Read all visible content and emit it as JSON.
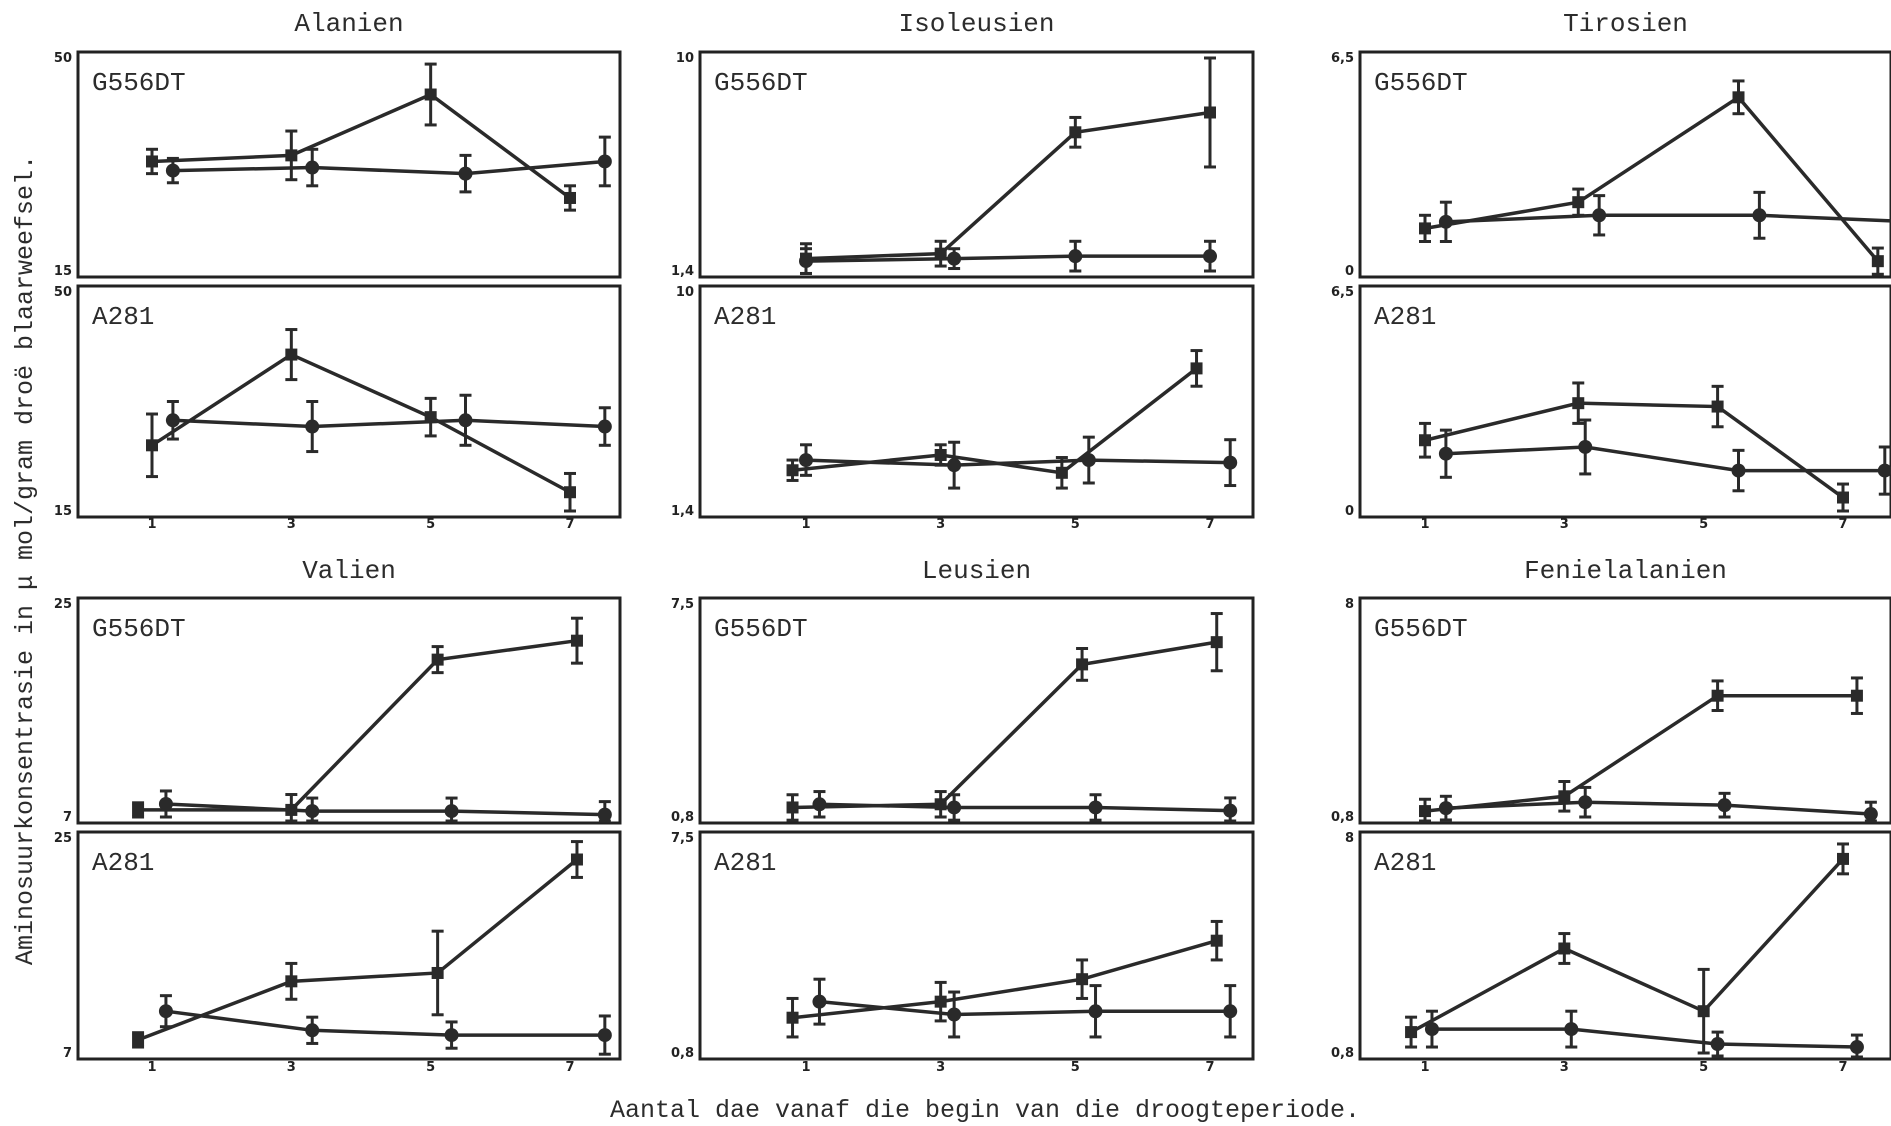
{
  "figure": {
    "ylabel": "Aminosuurkonsentrasie in μ mol/gram droë blaarweefsel.",
    "xlabel": "Aantal dae vanaf die begin van die droogteperiode."
  },
  "chart_data": [
    {
      "type": "line",
      "title": "Alanien",
      "x_ticks": [
        "1",
        "3",
        "5",
        "7"
      ],
      "panels": [
        {
          "label": "G556DT",
          "ylim": [
            15,
            50
          ],
          "y_ticks": [
            "50",
            "15"
          ],
          "series": [
            {
              "marker": "square",
              "points": [
                {
                  "x": 1,
                  "y": 33,
                  "err": 2
                },
                {
                  "x": 3,
                  "y": 34,
                  "err": 4
                },
                {
                  "x": 5,
                  "y": 44,
                  "err": 5
                },
                {
                  "x": 7,
                  "y": 27,
                  "err": 2
                }
              ]
            },
            {
              "marker": "circle",
              "points": [
                {
                  "x": 1.3,
                  "y": 31.5,
                  "err": 2
                },
                {
                  "x": 3.3,
                  "y": 32,
                  "err": 3
                },
                {
                  "x": 5.5,
                  "y": 31,
                  "err": 3
                },
                {
                  "x": 7.5,
                  "y": 33,
                  "err": 4
                }
              ]
            }
          ]
        },
        {
          "label": "A281",
          "ylim": [
            15,
            50
          ],
          "y_ticks": [
            "50",
            "15"
          ],
          "series": [
            {
              "marker": "square",
              "points": [
                {
                  "x": 1,
                  "y": 25.5,
                  "err": 5
                },
                {
                  "x": 3,
                  "y": 40,
                  "err": 4
                },
                {
                  "x": 5,
                  "y": 30,
                  "err": 3
                },
                {
                  "x": 7,
                  "y": 18,
                  "err": 3
                }
              ]
            },
            {
              "marker": "circle",
              "points": [
                {
                  "x": 1.3,
                  "y": 29.5,
                  "err": 3
                },
                {
                  "x": 3.3,
                  "y": 28.5,
                  "err": 4
                },
                {
                  "x": 5.5,
                  "y": 29.5,
                  "err": 4
                },
                {
                  "x": 7.5,
                  "y": 28.5,
                  "err": 3
                }
              ]
            }
          ]
        }
      ]
    },
    {
      "type": "line",
      "title": "Isoleusien",
      "x_ticks": [
        "1",
        "3",
        "5",
        "7"
      ],
      "panels": [
        {
          "label": "G556DT",
          "ylim": [
            1.4,
            10
          ],
          "y_ticks": [
            "10",
            "1,4"
          ],
          "series": [
            {
              "marker": "square",
              "points": [
                {
                  "x": 1,
                  "y": 1.9,
                  "err": 0.6
                },
                {
                  "x": 3,
                  "y": 2.1,
                  "err": 0.5
                },
                {
                  "x": 5,
                  "y": 7.0,
                  "err": 0.6
                },
                {
                  "x": 7,
                  "y": 7.8,
                  "err": 2.2
                }
              ]
            },
            {
              "marker": "circle",
              "points": [
                {
                  "x": 1,
                  "y": 1.8,
                  "err": 0.5
                },
                {
                  "x": 3.2,
                  "y": 1.9,
                  "err": 0.4
                },
                {
                  "x": 5,
                  "y": 2.0,
                  "err": 0.6
                },
                {
                  "x": 7,
                  "y": 2.0,
                  "err": 0.6
                }
              ]
            }
          ]
        },
        {
          "label": "A281",
          "ylim": [
            1.4,
            10
          ],
          "y_ticks": [
            "10",
            "1,4"
          ],
          "series": [
            {
              "marker": "square",
              "points": [
                {
                  "x": 0.8,
                  "y": 3.0,
                  "err": 0.4
                },
                {
                  "x": 3.0,
                  "y": 3.6,
                  "err": 0.4
                },
                {
                  "x": 4.8,
                  "y": 2.9,
                  "err": 0.6
                },
                {
                  "x": 6.8,
                  "y": 7.0,
                  "err": 0.7
                }
              ]
            },
            {
              "marker": "circle",
              "points": [
                {
                  "x": 1.0,
                  "y": 3.4,
                  "err": 0.6
                },
                {
                  "x": 3.2,
                  "y": 3.2,
                  "err": 0.9
                },
                {
                  "x": 5.2,
                  "y": 3.4,
                  "err": 0.9
                },
                {
                  "x": 7.3,
                  "y": 3.3,
                  "err": 0.9
                }
              ]
            }
          ]
        }
      ]
    },
    {
      "type": "line",
      "title": "Tirosien",
      "x_ticks": [
        "1",
        "3",
        "5",
        "7"
      ],
      "panels": [
        {
          "label": "G556DT",
          "ylim": [
            0,
            6.5
          ],
          "y_ticks": [
            "6,5",
            "0"
          ],
          "series": [
            {
              "marker": "square",
              "points": [
                {
                  "x": 1,
                  "y": 1.3,
                  "err": 0.4
                },
                {
                  "x": 3.2,
                  "y": 2.1,
                  "err": 0.4
                },
                {
                  "x": 5.5,
                  "y": 5.3,
                  "err": 0.5
                },
                {
                  "x": 7.5,
                  "y": 0.3,
                  "err": 0.4
                }
              ]
            },
            {
              "marker": "circle",
              "points": [
                {
                  "x": 1.3,
                  "y": 1.5,
                  "err": 0.6
                },
                {
                  "x": 3.5,
                  "y": 1.7,
                  "err": 0.6
                },
                {
                  "x": 5.8,
                  "y": 1.7,
                  "err": 0.7
                },
                {
                  "x": 8.0,
                  "y": 1.5,
                  "err": 0.7
                }
              ]
            }
          ]
        },
        {
          "label": "A281",
          "ylim": [
            0,
            6.5
          ],
          "y_ticks": [
            "6,5",
            "0"
          ],
          "series": [
            {
              "marker": "square",
              "points": [
                {
                  "x": 1,
                  "y": 2.1,
                  "err": 0.5
                },
                {
                  "x": 3.2,
                  "y": 3.2,
                  "err": 0.6
                },
                {
                  "x": 5.2,
                  "y": 3.1,
                  "err": 0.6
                },
                {
                  "x": 7.0,
                  "y": 0.4,
                  "err": 0.4
                }
              ]
            },
            {
              "marker": "circle",
              "points": [
                {
                  "x": 1.3,
                  "y": 1.7,
                  "err": 0.7
                },
                {
                  "x": 3.3,
                  "y": 1.9,
                  "err": 0.8
                },
                {
                  "x": 5.5,
                  "y": 1.2,
                  "err": 0.6
                },
                {
                  "x": 7.6,
                  "y": 1.2,
                  "err": 0.7
                }
              ]
            }
          ]
        }
      ]
    },
    {
      "type": "line",
      "title": "Valien",
      "x_ticks": [
        "1",
        "3",
        "5",
        "7"
      ],
      "panels": [
        {
          "label": "G556DT",
          "ylim": [
            7,
            25
          ],
          "y_ticks": [
            "25",
            "7"
          ],
          "series": [
            {
              "marker": "square",
              "points": [
                {
                  "x": 0.8,
                  "y": 7.6,
                  "err": 0.6
                },
                {
                  "x": 3.0,
                  "y": 7.6,
                  "err": 1.3
                },
                {
                  "x": 5.1,
                  "y": 20.3,
                  "err": 1.1
                },
                {
                  "x": 7.1,
                  "y": 21.9,
                  "err": 1.9
                }
              ]
            },
            {
              "marker": "circle",
              "points": [
                {
                  "x": 1.2,
                  "y": 8.1,
                  "err": 1.1
                },
                {
                  "x": 3.3,
                  "y": 7.5,
                  "err": 1.1
                },
                {
                  "x": 5.3,
                  "y": 7.5,
                  "err": 1.1
                },
                {
                  "x": 7.5,
                  "y": 7.2,
                  "err": 1.1
                }
              ]
            }
          ]
        },
        {
          "label": "A281",
          "ylim": [
            7,
            25
          ],
          "y_ticks": [
            "25",
            "7"
          ],
          "series": [
            {
              "marker": "square",
              "points": [
                {
                  "x": 0.8,
                  "y": 8.1,
                  "err": 0.6
                },
                {
                  "x": 3.0,
                  "y": 13.0,
                  "err": 1.5
                },
                {
                  "x": 5.1,
                  "y": 13.7,
                  "err": 3.5
                },
                {
                  "x": 7.1,
                  "y": 23.2,
                  "err": 1.5
                }
              ]
            },
            {
              "marker": "circle",
              "points": [
                {
                  "x": 1.2,
                  "y": 10.5,
                  "err": 1.3
                },
                {
                  "x": 3.3,
                  "y": 8.9,
                  "err": 1.1
                },
                {
                  "x": 5.3,
                  "y": 8.5,
                  "err": 1.1
                },
                {
                  "x": 7.5,
                  "y": 8.5,
                  "err": 1.6
                }
              ]
            }
          ]
        }
      ]
    },
    {
      "type": "line",
      "title": "Leusien",
      "x_ticks": [
        "1",
        "3",
        "5",
        "7"
      ],
      "panels": [
        {
          "label": "G556DT",
          "ylim": [
            0.8,
            7.5
          ],
          "y_ticks": [
            "7,5",
            "0,8"
          ],
          "series": [
            {
              "marker": "square",
              "points": [
                {
                  "x": 0.8,
                  "y": 1.1,
                  "err": 0.4
                },
                {
                  "x": 3.0,
                  "y": 1.2,
                  "err": 0.4
                },
                {
                  "x": 5.1,
                  "y": 5.6,
                  "err": 0.5
                },
                {
                  "x": 7.1,
                  "y": 6.3,
                  "err": 0.9
                }
              ]
            },
            {
              "marker": "circle",
              "points": [
                {
                  "x": 1.2,
                  "y": 1.2,
                  "err": 0.4
                },
                {
                  "x": 3.2,
                  "y": 1.1,
                  "err": 0.4
                },
                {
                  "x": 5.3,
                  "y": 1.1,
                  "err": 0.4
                },
                {
                  "x": 7.3,
                  "y": 1.0,
                  "err": 0.4
                }
              ]
            }
          ]
        },
        {
          "label": "A281",
          "ylim": [
            0.8,
            7.5
          ],
          "y_ticks": [
            "7,5",
            "0,8"
          ],
          "series": [
            {
              "marker": "square",
              "points": [
                {
                  "x": 0.8,
                  "y": 1.9,
                  "err": 0.6
                },
                {
                  "x": 3.0,
                  "y": 2.4,
                  "err": 0.6
                },
                {
                  "x": 5.1,
                  "y": 3.1,
                  "err": 0.6
                },
                {
                  "x": 7.1,
                  "y": 4.3,
                  "err": 0.6
                }
              ]
            },
            {
              "marker": "circle",
              "points": [
                {
                  "x": 1.2,
                  "y": 2.4,
                  "err": 0.7
                },
                {
                  "x": 3.2,
                  "y": 2.0,
                  "err": 0.7
                },
                {
                  "x": 5.3,
                  "y": 2.1,
                  "err": 0.8
                },
                {
                  "x": 7.3,
                  "y": 2.1,
                  "err": 0.8
                }
              ]
            }
          ]
        }
      ]
    },
    {
      "type": "line",
      "title": "Fenielalanien",
      "x_ticks": [
        "1",
        "3",
        "5",
        "7"
      ],
      "panels": [
        {
          "label": "G556DT",
          "ylim": [
            0.8,
            8
          ],
          "y_ticks": [
            "8",
            "0,8"
          ],
          "series": [
            {
              "marker": "square",
              "points": [
                {
                  "x": 1.0,
                  "y": 1.0,
                  "err": 0.4
                },
                {
                  "x": 3.0,
                  "y": 1.5,
                  "err": 0.5
                },
                {
                  "x": 5.2,
                  "y": 4.9,
                  "err": 0.5
                },
                {
                  "x": 7.2,
                  "y": 4.9,
                  "err": 0.6
                }
              ]
            },
            {
              "marker": "circle",
              "points": [
                {
                  "x": 1.3,
                  "y": 1.1,
                  "err": 0.4
                },
                {
                  "x": 3.3,
                  "y": 1.3,
                  "err": 0.5
                },
                {
                  "x": 5.3,
                  "y": 1.2,
                  "err": 0.4
                },
                {
                  "x": 7.4,
                  "y": 0.9,
                  "err": 0.4
                }
              ]
            }
          ]
        },
        {
          "label": "A281",
          "ylim": [
            0.8,
            8
          ],
          "y_ticks": [
            "8",
            "0,8"
          ],
          "series": [
            {
              "marker": "square",
              "points": [
                {
                  "x": 0.8,
                  "y": 1.5,
                  "err": 0.5
                },
                {
                  "x": 3.0,
                  "y": 4.3,
                  "err": 0.5
                },
                {
                  "x": 5.0,
                  "y": 2.2,
                  "err": 1.4
                },
                {
                  "x": 7.0,
                  "y": 7.3,
                  "err": 0.5
                }
              ]
            },
            {
              "marker": "circle",
              "points": [
                {
                  "x": 1.1,
                  "y": 1.6,
                  "err": 0.6
                },
                {
                  "x": 3.1,
                  "y": 1.6,
                  "err": 0.6
                },
                {
                  "x": 5.2,
                  "y": 1.1,
                  "err": 0.4
                },
                {
                  "x": 7.2,
                  "y": 1.0,
                  "err": 0.4
                }
              ]
            }
          ]
        }
      ]
    }
  ]
}
